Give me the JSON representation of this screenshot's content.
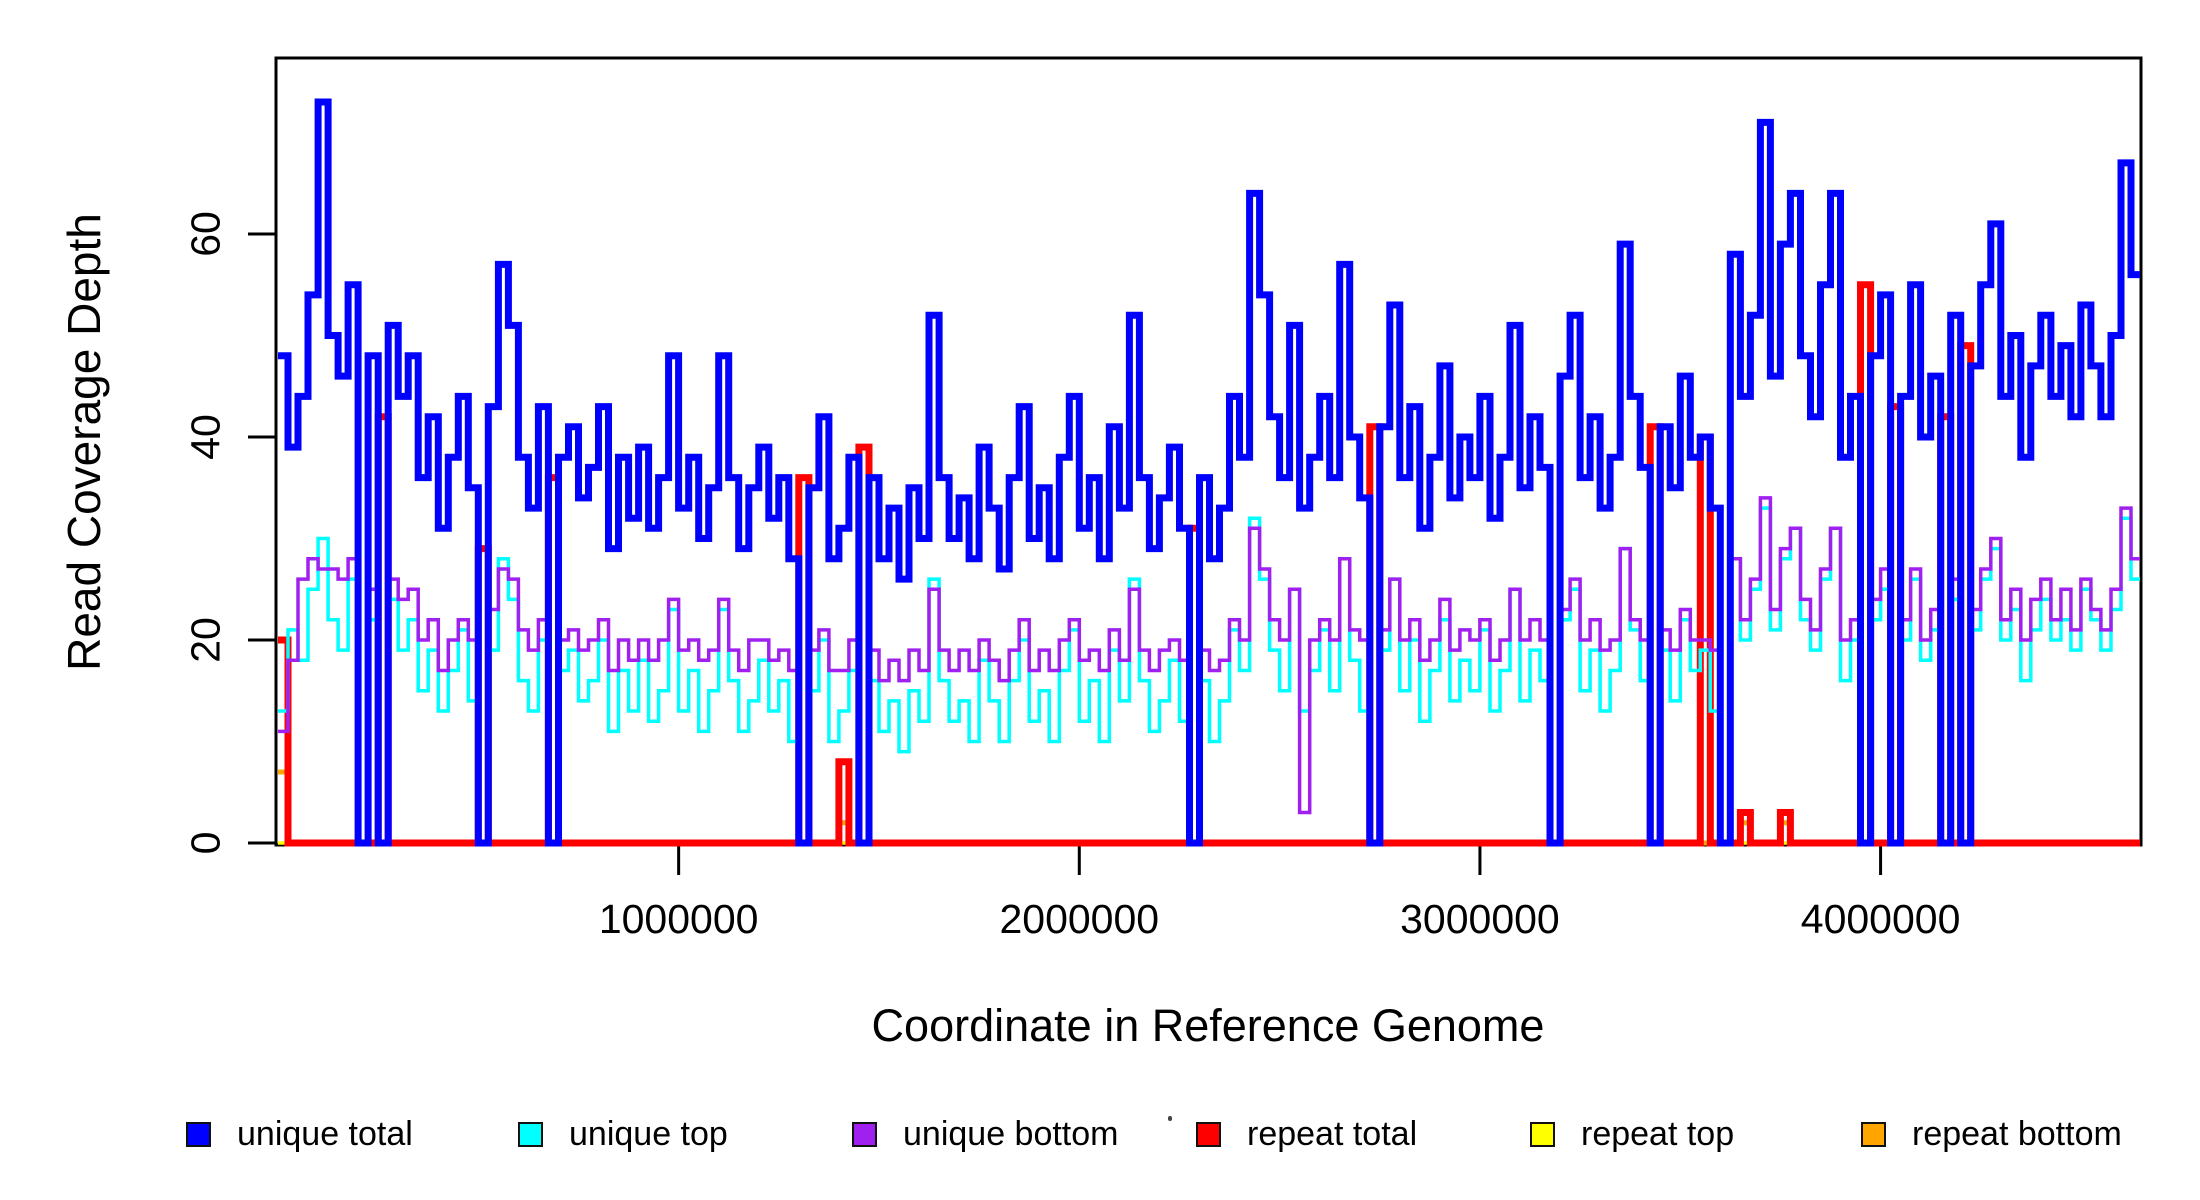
{
  "chart_data": {
    "type": "line",
    "subtype": "step",
    "title": "",
    "xlabel": "Coordinate in Reference Genome",
    "ylabel": "Read Coverage Depth",
    "xlim": [
      0,
      4650000
    ],
    "ylim": [
      0,
      78
    ],
    "grid": false,
    "legend_position": "bottom",
    "bin_size": 25000,
    "n_bins": 186,
    "x_axis": {
      "label": "Coordinate in Reference Genome",
      "ticks": [
        {
          "value": 1000000,
          "label": "1000000"
        },
        {
          "value": 2000000,
          "label": "2000000"
        },
        {
          "value": 3000000,
          "label": "3000000"
        },
        {
          "value": 4000000,
          "label": "4000000"
        }
      ]
    },
    "y_axis": {
      "label": "Read Coverage Depth",
      "ticks": [
        {
          "value": 0,
          "label": "0"
        },
        {
          "value": 20,
          "label": "20"
        },
        {
          "value": 40,
          "label": "40"
        },
        {
          "value": 60,
          "label": "60"
        }
      ]
    },
    "draw_order": [
      "repeat_top",
      "repeat_bottom",
      "repeat_total",
      "unique_top",
      "unique_bottom",
      "unique_total"
    ],
    "series": [
      {
        "key": "unique_total",
        "label": "unique total",
        "color": "#0000FF",
        "line_width": 7,
        "values": [
          48,
          39,
          44,
          54,
          73,
          50,
          46,
          55,
          0,
          48,
          0,
          51,
          44,
          48,
          36,
          42,
          31,
          38,
          44,
          35,
          0,
          43,
          57,
          51,
          38,
          33,
          43,
          0,
          38,
          41,
          34,
          37,
          43,
          29,
          38,
          32,
          39,
          31,
          36,
          48,
          33,
          38,
          30,
          35,
          48,
          36,
          29,
          35,
          39,
          32,
          36,
          28,
          0,
          35,
          42,
          28,
          31,
          38,
          0,
          36,
          28,
          33,
          26,
          35,
          30,
          52,
          36,
          30,
          34,
          28,
          39,
          33,
          27,
          36,
          43,
          30,
          35,
          28,
          38,
          44,
          31,
          36,
          28,
          41,
          33,
          52,
          36,
          29,
          34,
          39,
          31,
          0,
          36,
          28,
          33,
          44,
          38,
          64,
          54,
          42,
          36,
          51,
          33,
          38,
          44,
          36,
          57,
          40,
          34,
          0,
          41,
          53,
          36,
          43,
          31,
          38,
          47,
          34,
          40,
          36,
          44,
          32,
          38,
          51,
          35,
          42,
          37,
          0,
          46,
          52,
          36,
          42,
          33,
          38,
          59,
          44,
          37,
          0,
          41,
          35,
          46,
          38,
          40,
          33,
          0,
          58,
          44,
          52,
          71,
          46,
          59,
          64,
          48,
          42,
          55,
          64,
          38,
          44,
          0,
          48,
          54,
          0,
          44,
          55,
          40,
          46,
          0,
          52,
          0,
          47,
          55,
          61,
          44,
          50,
          38,
          47,
          52,
          44,
          49,
          42,
          53,
          47,
          42,
          50,
          67,
          56
        ]
      },
      {
        "key": "unique_top",
        "label": "unique top",
        "color": "#00FFFF",
        "line_width": 3.5,
        "values": [
          13,
          21,
          18,
          25,
          30,
          22,
          19,
          26,
          0,
          22,
          0,
          24,
          19,
          22,
          15,
          19,
          13,
          17,
          21,
          14,
          0,
          19,
          28,
          24,
          16,
          13,
          20,
          0,
          17,
          19,
          14,
          16,
          20,
          11,
          17,
          13,
          18,
          12,
          15,
          23,
          13,
          17,
          11,
          15,
          23,
          16,
          11,
          14,
          18,
          13,
          16,
          10,
          0,
          15,
          20,
          10,
          13,
          17,
          0,
          16,
          11,
          14,
          9,
          15,
          12,
          26,
          16,
          12,
          14,
          10,
          18,
          14,
          10,
          16,
          20,
          12,
          15,
          10,
          17,
          21,
          12,
          16,
          10,
          19,
          14,
          26,
          16,
          11,
          14,
          18,
          12,
          0,
          16,
          10,
          14,
          21,
          17,
          32,
          26,
          19,
          15,
          25,
          13,
          17,
          21,
          15,
          28,
          18,
          13,
          0,
          19,
          26,
          15,
          20,
          12,
          17,
          22,
          14,
          18,
          15,
          21,
          13,
          17,
          25,
          14,
          19,
          16,
          0,
          22,
          25,
          15,
          19,
          13,
          17,
          29,
          21,
          16,
          0,
          19,
          14,
          22,
          17,
          19,
          13,
          0,
          28,
          20,
          25,
          33,
          21,
          28,
          31,
          22,
          19,
          26,
          31,
          16,
          20,
          0,
          22,
          25,
          0,
          20,
          26,
          18,
          21,
          0,
          24,
          0,
          21,
          26,
          29,
          20,
          23,
          16,
          21,
          24,
          20,
          22,
          19,
          25,
          22,
          19,
          23,
          32,
          26
        ]
      },
      {
        "key": "unique_bottom",
        "label": "unique bottom",
        "color": "#A020F0",
        "line_width": 3.5,
        "values": [
          11,
          18,
          26,
          28,
          27,
          27,
          26,
          28,
          0,
          25,
          0,
          26,
          24,
          25,
          20,
          22,
          17,
          20,
          22,
          20,
          0,
          23,
          27,
          26,
          21,
          19,
          22,
          0,
          20,
          21,
          19,
          20,
          22,
          17,
          20,
          18,
          20,
          18,
          20,
          24,
          19,
          20,
          18,
          19,
          24,
          19,
          17,
          20,
          20,
          18,
          19,
          17,
          0,
          19,
          21,
          17,
          17,
          20,
          0,
          19,
          16,
          18,
          16,
          19,
          17,
          25,
          19,
          17,
          19,
          17,
          20,
          18,
          16,
          19,
          22,
          17,
          19,
          17,
          20,
          22,
          18,
          19,
          17,
          21,
          18,
          25,
          19,
          17,
          19,
          20,
          18,
          0,
          19,
          17,
          18,
          22,
          20,
          31,
          27,
          22,
          20,
          25,
          3,
          20,
          22,
          20,
          28,
          21,
          20,
          0,
          21,
          26,
          20,
          22,
          18,
          20,
          24,
          19,
          21,
          20,
          22,
          18,
          20,
          25,
          20,
          22,
          20,
          0,
          23,
          26,
          20,
          22,
          19,
          20,
          29,
          22,
          20,
          0,
          21,
          19,
          23,
          20,
          20,
          19,
          0,
          28,
          22,
          26,
          34,
          23,
          29,
          31,
          24,
          21,
          27,
          31,
          20,
          22,
          0,
          24,
          27,
          0,
          22,
          27,
          20,
          23,
          0,
          26,
          0,
          23,
          27,
          30,
          22,
          25,
          20,
          24,
          26,
          22,
          25,
          21,
          26,
          23,
          21,
          25,
          33,
          28
        ]
      },
      {
        "key": "repeat_total",
        "label": "repeat total",
        "color": "#FF0000",
        "line_width": 7,
        "base": 0,
        "spikes": {
          "0": 20,
          "10": 42,
          "20": 29,
          "27": 36,
          "52": 36,
          "56": 8,
          "58": 39,
          "91": 31,
          "109": 41,
          "137": 41,
          "142": 40,
          "146": 3,
          "150": 3,
          "158": 55,
          "161": 43,
          "166": 42,
          "168": 49
        }
      },
      {
        "key": "repeat_top",
        "label": "repeat top",
        "color": "#FFFF00",
        "line_width": 3.5,
        "base": 0,
        "spikes": {}
      },
      {
        "key": "repeat_bottom",
        "label": "repeat bottom",
        "color": "#FFA500",
        "line_width": 5,
        "base": 0,
        "spikes": {
          "0": 7,
          "56": 2,
          "146": 2,
          "150": 2
        }
      }
    ]
  }
}
